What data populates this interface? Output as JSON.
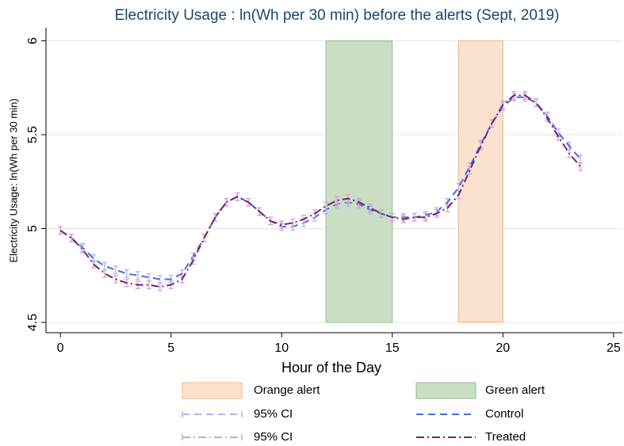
{
  "chart_data": {
    "type": "line",
    "title": "Electricity Usage : ln(Wh per 30 min) before the alerts (Sept, 2019)",
    "x_label": "Hour of the Day",
    "y_label": "Electricity Usage: ln(Wh per 30 min)",
    "xlim": [
      -0.65,
      25.4
    ],
    "ylim": [
      4.445,
      6.07
    ],
    "xticks": [
      0,
      5,
      10,
      15,
      20,
      25
    ],
    "yticks": [
      4.5,
      5,
      5.5,
      6
    ],
    "grid": true,
    "bands": [
      {
        "name": "Orange alert",
        "x": [
          18,
          20
        ],
        "y": [
          4.5,
          6
        ],
        "color": "#fbe2cf",
        "edge": "#f2b58a"
      },
      {
        "name": "Green alert",
        "x": [
          12,
          15
        ],
        "y": [
          4.5,
          6
        ],
        "color": "#c9dec3",
        "edge": "#93bf8c"
      }
    ],
    "x": [
      0,
      0.5,
      1,
      1.5,
      2,
      2.5,
      3,
      3.5,
      4,
      4.5,
      5,
      5.5,
      6,
      6.5,
      7,
      7.5,
      8,
      8.5,
      9,
      9.5,
      10,
      10.5,
      11,
      11.5,
      12,
      12.5,
      13,
      13.5,
      14,
      14.5,
      15,
      15.5,
      16,
      16.5,
      17,
      17.5,
      18,
      18.5,
      19,
      19.5,
      20,
      20.5,
      21,
      21.5,
      22,
      22.5,
      23,
      23.5
    ],
    "series": [
      {
        "name": "Control",
        "ci_name": "95% CI",
        "color": "#4a6ae0",
        "ci_color": "#a8b6f2",
        "dash": "9,6",
        "values": [
          4.99,
          4.95,
          4.9,
          4.84,
          4.8,
          4.78,
          4.76,
          4.75,
          4.74,
          4.73,
          4.73,
          4.76,
          4.85,
          4.95,
          5.06,
          5.14,
          5.17,
          5.14,
          5.09,
          5.04,
          5.01,
          5.01,
          5.03,
          5.06,
          5.1,
          5.13,
          5.14,
          5.13,
          5.1,
          5.08,
          5.06,
          5.06,
          5.06,
          5.07,
          5.09,
          5.14,
          5.22,
          5.33,
          5.45,
          5.56,
          5.65,
          5.7,
          5.7,
          5.67,
          5.6,
          5.51,
          5.44,
          5.37
        ],
        "errors": [
          0.02,
          0.02,
          0.02,
          0.02,
          0.02,
          0.02,
          0.02,
          0.02,
          0.02,
          0.02,
          0.02,
          0.02,
          0.02,
          0.02,
          0.02,
          0.02,
          0.02,
          0.02,
          0.02,
          0.02,
          0.02,
          0.02,
          0.02,
          0.02,
          0.02,
          0.02,
          0.02,
          0.02,
          0.02,
          0.02,
          0.02,
          0.02,
          0.02,
          0.02,
          0.02,
          0.02,
          0.02,
          0.02,
          0.02,
          0.02,
          0.02,
          0.02,
          0.02,
          0.02,
          0.02,
          0.02,
          0.02,
          0.02
        ]
      },
      {
        "name": "Treated",
        "ci_name": "95% CI",
        "color": "#7b1f70",
        "ci_color": "#d3a6cf",
        "dash": "10,4,2,4",
        "values": [
          4.99,
          4.95,
          4.89,
          4.81,
          4.76,
          4.73,
          4.71,
          4.7,
          4.7,
          4.69,
          4.7,
          4.73,
          4.83,
          4.95,
          5.06,
          5.14,
          5.17,
          5.14,
          5.09,
          5.04,
          5.02,
          5.03,
          5.05,
          5.08,
          5.12,
          5.15,
          5.16,
          5.14,
          5.11,
          5.08,
          5.06,
          5.05,
          5.06,
          5.06,
          5.08,
          5.11,
          5.18,
          5.31,
          5.44,
          5.56,
          5.66,
          5.71,
          5.71,
          5.67,
          5.59,
          5.49,
          5.4,
          5.33
        ],
        "errors": [
          0.02,
          0.02,
          0.02,
          0.02,
          0.02,
          0.02,
          0.02,
          0.02,
          0.02,
          0.02,
          0.02,
          0.02,
          0.02,
          0.02,
          0.02,
          0.02,
          0.02,
          0.02,
          0.02,
          0.02,
          0.02,
          0.02,
          0.02,
          0.02,
          0.02,
          0.02,
          0.02,
          0.02,
          0.02,
          0.02,
          0.02,
          0.02,
          0.02,
          0.02,
          0.02,
          0.02,
          0.02,
          0.02,
          0.02,
          0.02,
          0.02,
          0.02,
          0.02,
          0.02,
          0.02,
          0.02,
          0.02,
          0.02
        ]
      }
    ]
  }
}
